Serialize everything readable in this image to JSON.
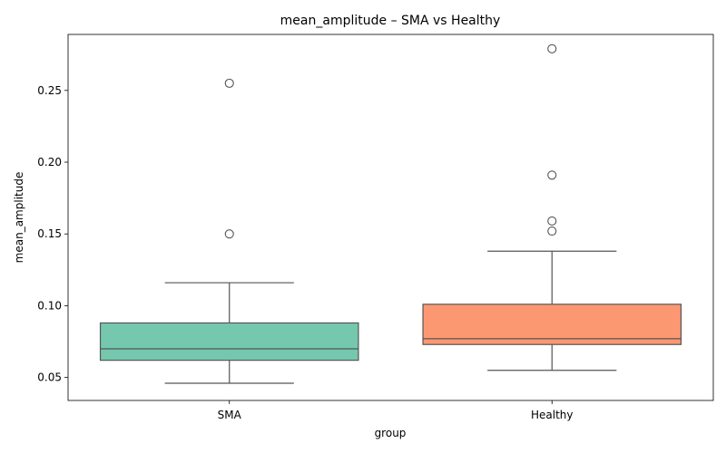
{
  "chart_data": {
    "type": "box",
    "title": "mean_amplitude – SMA vs Healthy",
    "xlabel": "group",
    "ylabel": "mean_amplitude",
    "categories": [
      "SMA",
      "Healthy"
    ],
    "ylim": [
      0.034,
      0.289
    ],
    "yticks": [
      0.05,
      0.1,
      0.15,
      0.2,
      0.25
    ],
    "ytick_labels": [
      "0.05",
      "0.10",
      "0.15",
      "0.20",
      "0.25"
    ],
    "grid": false,
    "legend": "none",
    "boxes": [
      {
        "category": "SMA",
        "color": "#66c2a5",
        "whisker_low": 0.046,
        "q1": 0.062,
        "median": 0.07,
        "q3": 0.088,
        "whisker_high": 0.116,
        "outliers": [
          0.15,
          0.255
        ]
      },
      {
        "category": "Healthy",
        "color": "#fc8d62",
        "whisker_low": 0.055,
        "q1": 0.073,
        "median": 0.077,
        "q3": 0.101,
        "whisker_high": 0.138,
        "outliers": [
          0.152,
          0.159,
          0.191,
          0.279
        ]
      }
    ]
  }
}
